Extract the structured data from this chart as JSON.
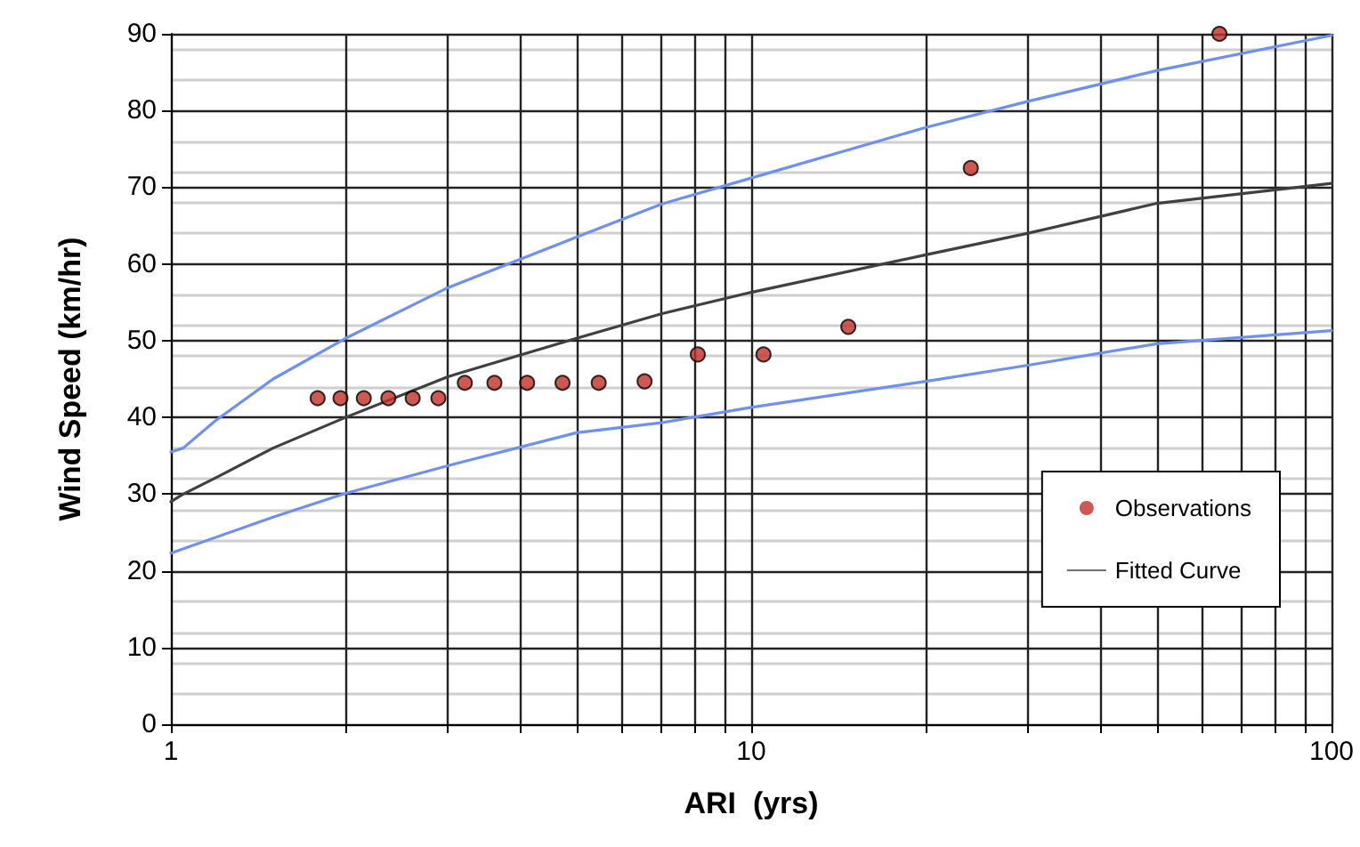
{
  "chart_data": {
    "type": "scatter",
    "xlabel": "ARI  (yrs)",
    "ylabel": "Wind Speed (km/hr)",
    "log": "x",
    "xlim": [
      1,
      100
    ],
    "ylim": [
      0,
      90
    ],
    "xticks": [
      1,
      {
        "value": 2,
        "label": null
      },
      {
        "value": 3,
        "label": null
      },
      {
        "value": 4,
        "label": null
      },
      {
        "value": 5,
        "label": null
      },
      {
        "value": 6,
        "label": null
      },
      {
        "value": 7,
        "label": null
      },
      {
        "value": 8,
        "label": null
      },
      {
        "value": 9,
        "label": null
      },
      10,
      {
        "value": 20,
        "label": null
      },
      {
        "value": 30,
        "label": null
      },
      {
        "value": 40,
        "label": null
      },
      {
        "value": 50,
        "label": null
      },
      {
        "value": 60,
        "label": null
      },
      {
        "value": 70,
        "label": null
      },
      {
        "value": 80,
        "label": null
      },
      {
        "value": 90,
        "label": null
      },
      100
    ],
    "yticks": [
      0,
      10,
      20,
      30,
      40,
      50,
      60,
      70,
      80,
      90
    ],
    "grid": true,
    "legend": "bottom right",
    "series": [
      {
        "name": "Observations",
        "marker": "circle",
        "color": "#c0302a",
        "x": [
          1.79,
          1.96,
          2.15,
          2.37,
          2.61,
          2.89,
          3.21,
          3.61,
          4.11,
          4.73,
          5.46,
          6.55,
          8.09,
          10.5,
          14.7,
          23.9,
          64.1
        ],
        "values": [
          42.5,
          42.5,
          42.5,
          42.5,
          42.5,
          42.5,
          44.5,
          44.5,
          44.5,
          44.5,
          44.5,
          44.7,
          48.2,
          48.2,
          51.8,
          72.5,
          90
        ]
      },
      {
        "name": "Fitted Curve",
        "type": "line",
        "marker": "none",
        "line_style": "solid",
        "color": "#404040",
        "x": [
          1,
          1.05,
          1.2,
          1.5,
          2,
          3,
          5,
          7,
          10,
          20,
          30,
          50,
          100
        ],
        "values": [
          29,
          30,
          32.2,
          36,
          40,
          45.3,
          50.3,
          53.5,
          56.3,
          61.2,
          64,
          67.9,
          70.5
        ]
      },
      {
        "type": "line",
        "marker": "none",
        "line_style": "solid",
        "color": "#7090ee",
        "x": [
          1,
          1.05,
          1.19,
          1.5,
          2,
          3,
          5,
          7,
          10,
          20,
          30,
          50,
          100
        ],
        "values": [
          35.5,
          36,
          39.5,
          45,
          50.3,
          56.9,
          63.5,
          67.8,
          71.2,
          77.8,
          81.2,
          85.2,
          89.8
        ]
      },
      {
        "type": "line",
        "marker": "none",
        "line_style": "solid",
        "color": "#7090ee",
        "x": [
          1,
          1.5,
          2,
          3,
          5,
          7,
          10,
          20,
          30,
          50,
          100
        ],
        "values": [
          22.3,
          27,
          30.1,
          33.7,
          38,
          39.3,
          41.3,
          44.7,
          46.8,
          49.6,
          51.3
        ]
      }
    ]
  }
}
